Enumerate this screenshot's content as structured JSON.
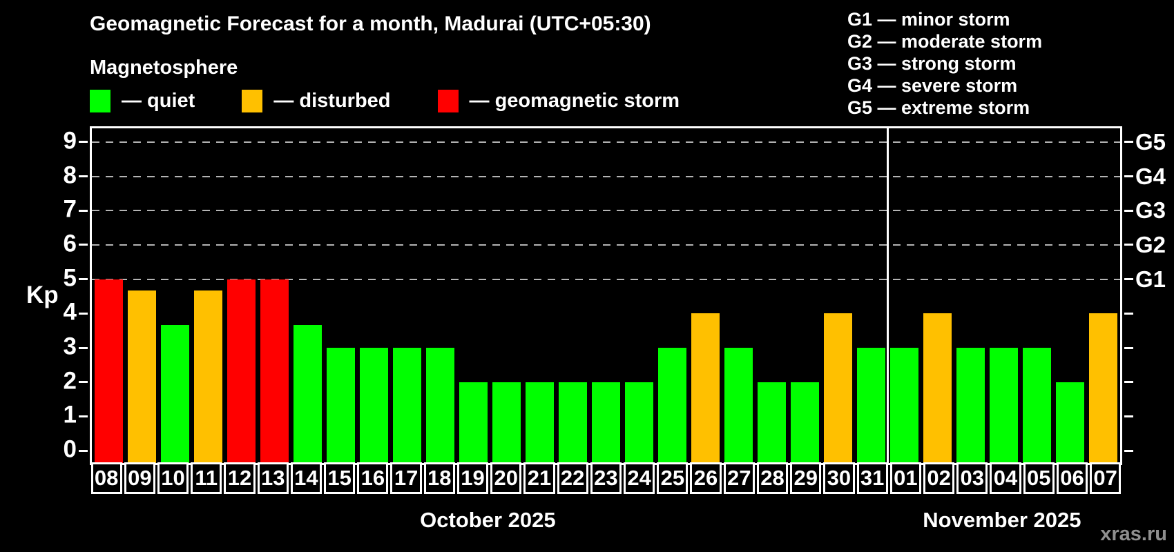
{
  "header": {
    "title": "Geomagnetic Forecast for a month, Madurai (UTC+05:30)",
    "subtitle": "Magnetosphere"
  },
  "legend": [
    {
      "key": "quiet",
      "label": "— quiet",
      "color": "#00ff00"
    },
    {
      "key": "disturbed",
      "label": "— disturbed",
      "color": "#ffc000"
    },
    {
      "key": "storm",
      "label": "— geomagnetic storm",
      "color": "#ff0000"
    }
  ],
  "g_legend": [
    "G1 — minor storm",
    "G2 — moderate storm",
    "G3 — strong storm",
    "G4 — severe storm",
    "G5 — extreme storm"
  ],
  "chart_data": {
    "type": "bar",
    "title": "Geomagnetic Forecast for a month, Madurai (UTC+05:30)",
    "ylabel": "Kp",
    "ylim": [
      -0.36,
      9.4
    ],
    "yticks": [
      0,
      1,
      2,
      3,
      4,
      5,
      6,
      7,
      8,
      9
    ],
    "grid_kp": [
      5,
      6,
      7,
      8,
      9
    ],
    "grid_style": "dashed",
    "right_axis": [
      {
        "label": "G1",
        "kp": 5
      },
      {
        "label": "G2",
        "kp": 6
      },
      {
        "label": "G3",
        "kp": 7
      },
      {
        "label": "G4",
        "kp": 8
      },
      {
        "label": "G5",
        "kp": 9
      }
    ],
    "colors": {
      "quiet": "#00ff00",
      "disturbed": "#ffc000",
      "storm": "#ff0000"
    },
    "months": [
      {
        "label": "October 2025",
        "days": [
          {
            "date": "08",
            "kp": 5,
            "status": "storm"
          },
          {
            "date": "09",
            "kp": 4.67,
            "status": "disturbed"
          },
          {
            "date": "10",
            "kp": 3.67,
            "status": "quiet"
          },
          {
            "date": "11",
            "kp": 4.67,
            "status": "disturbed"
          },
          {
            "date": "12",
            "kp": 5,
            "status": "storm"
          },
          {
            "date": "13",
            "kp": 5,
            "status": "storm"
          },
          {
            "date": "14",
            "kp": 3.67,
            "status": "quiet"
          },
          {
            "date": "15",
            "kp": 3,
            "status": "quiet"
          },
          {
            "date": "16",
            "kp": 3,
            "status": "quiet"
          },
          {
            "date": "17",
            "kp": 3,
            "status": "quiet"
          },
          {
            "date": "18",
            "kp": 3,
            "status": "quiet"
          },
          {
            "date": "19",
            "kp": 2,
            "status": "quiet"
          },
          {
            "date": "20",
            "kp": 2,
            "status": "quiet"
          },
          {
            "date": "21",
            "kp": 2,
            "status": "quiet"
          },
          {
            "date": "22",
            "kp": 2,
            "status": "quiet"
          },
          {
            "date": "23",
            "kp": 2,
            "status": "quiet"
          },
          {
            "date": "24",
            "kp": 2,
            "status": "quiet"
          },
          {
            "date": "25",
            "kp": 3,
            "status": "quiet"
          },
          {
            "date": "26",
            "kp": 4,
            "status": "disturbed"
          },
          {
            "date": "27",
            "kp": 3,
            "status": "quiet"
          },
          {
            "date": "28",
            "kp": 2,
            "status": "quiet"
          },
          {
            "date": "29",
            "kp": 2,
            "status": "quiet"
          },
          {
            "date": "30",
            "kp": 4,
            "status": "disturbed"
          },
          {
            "date": "31",
            "kp": 3,
            "status": "quiet"
          }
        ]
      },
      {
        "label": "November 2025",
        "days": [
          {
            "date": "01",
            "kp": 3,
            "status": "quiet"
          },
          {
            "date": "02",
            "kp": 4,
            "status": "disturbed"
          },
          {
            "date": "03",
            "kp": 3,
            "status": "quiet"
          },
          {
            "date": "04",
            "kp": 3,
            "status": "quiet"
          },
          {
            "date": "05",
            "kp": 3,
            "status": "quiet"
          },
          {
            "date": "06",
            "kp": 2,
            "status": "quiet"
          },
          {
            "date": "07",
            "kp": 4,
            "status": "disturbed"
          }
        ]
      }
    ]
  },
  "watermark": "xras.ru"
}
